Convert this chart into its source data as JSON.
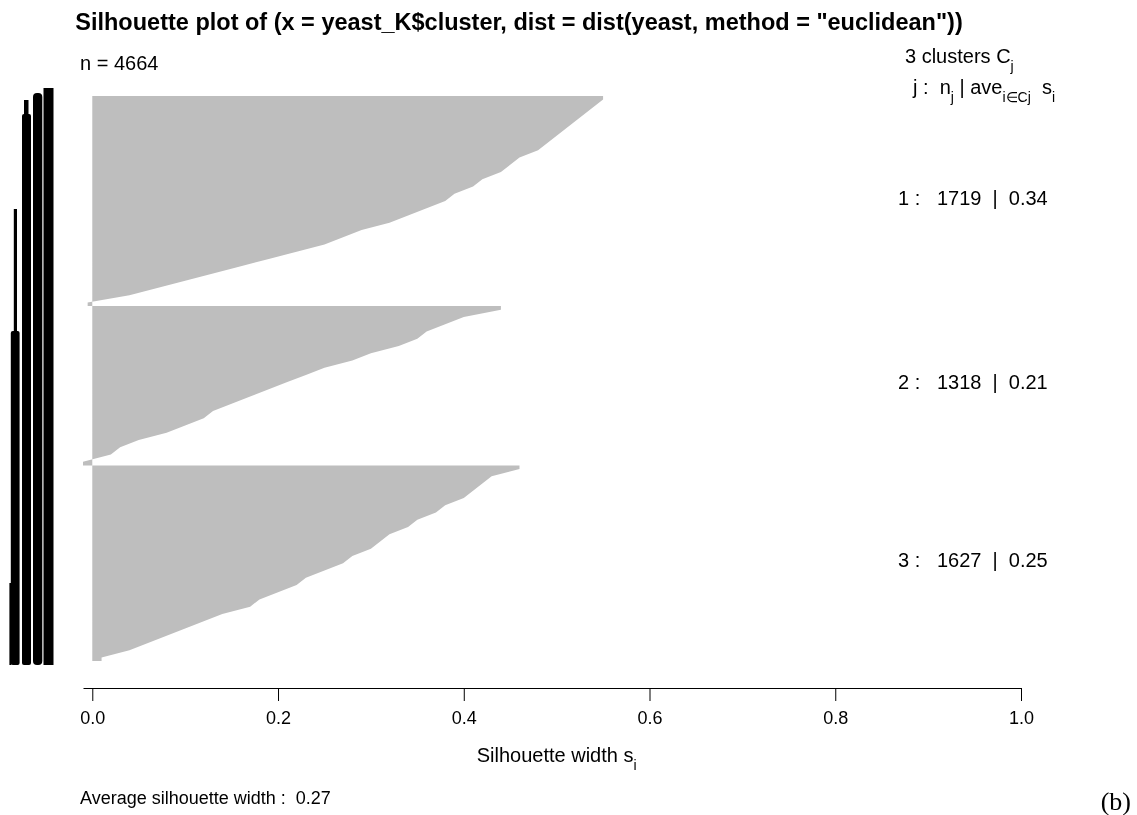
{
  "chart_data": {
    "type": "area",
    "orientation": "horizontal",
    "title": "Silhouette plot of (x = yeast_K$cluster, dist = dist(yeast, method = \"euclidean\"))",
    "subtitle": "n = 4664",
    "xlabel": "Silhouette width s$_{i}$",
    "annotations": [
      "3 clusters C$_{j}$",
      "j :  n$_{j}$ | ave$_{i∈Cj}$  s$_{i}$",
      "1 :   1719  |  0.34",
      "2 :   1318  |  0.21",
      "3 :   1627  |  0.25",
      "Average silhouette width :  0.27",
      "(b)"
    ],
    "categories": [
      null,
      null,
      null,
      null,
      null,
      null,
      null,
      null,
      null,
      null,
      null,
      null,
      null,
      null,
      null,
      null,
      null,
      null,
      null,
      null,
      null,
      null,
      null,
      null,
      null,
      null,
      null,
      null,
      null,
      null,
      null,
      null,
      null,
      null,
      null,
      null,
      null,
      null,
      null,
      null,
      null,
      null,
      null,
      null,
      null,
      null,
      null,
      null,
      null,
      null,
      null,
      null,
      null,
      null,
      null,
      null,
      null,
      null,
      null,
      null,
      null,
      null,
      null,
      null,
      null,
      null,
      null,
      null,
      null,
      null,
      null,
      null,
      null,
      null,
      null,
      null,
      null,
      null
    ],
    "series": [
      {
        "color": "#bebebe",
        "values": [
          0.55,
          0.54,
          0.53,
          0.52,
          0.51,
          0.5,
          0.49,
          0.48,
          0.46,
          0.45,
          0.44,
          0.42,
          0.41,
          0.39,
          0.38,
          0.36,
          0.34,
          0.32,
          0.29,
          0.27,
          0.25,
          0.22,
          0.19,
          0.16,
          0.13,
          0.1,
          0.07,
          0.04,
          -0.005,
          0.44,
          0.4,
          0.38,
          0.36,
          0.35,
          0.33,
          0.3,
          0.28,
          0.25,
          0.23,
          0.21,
          0.19,
          0.17,
          0.15,
          0.13,
          0.12,
          0.1,
          0.08,
          0.05,
          0.03,
          0.02,
          -0.01,
          0.46,
          0.43,
          0.42,
          0.41,
          0.4,
          0.38,
          0.37,
          0.35,
          0.34,
          0.32,
          0.31,
          0.3,
          0.28,
          0.27,
          0.25,
          0.23,
          0.22,
          0.2,
          0.18,
          0.17,
          0.14,
          0.12,
          0.1,
          0.08,
          0.06,
          0.04,
          0.01
        ]
      }
    ],
    "xlim": [
      -0.01,
      1
    ],
    "xticks": [
      {
        "value": 0,
        "label": "0.0"
      },
      {
        "value": 0.2,
        "label": "0.2"
      },
      {
        "value": 0.4,
        "label": "0.4"
      },
      {
        "value": 0.6,
        "label": "0.6"
      },
      {
        "value": 0.8,
        "label": "0.8"
      },
      {
        "value": 1,
        "label": "1.0"
      }
    ],
    "tick_labels": "x"
  }
}
